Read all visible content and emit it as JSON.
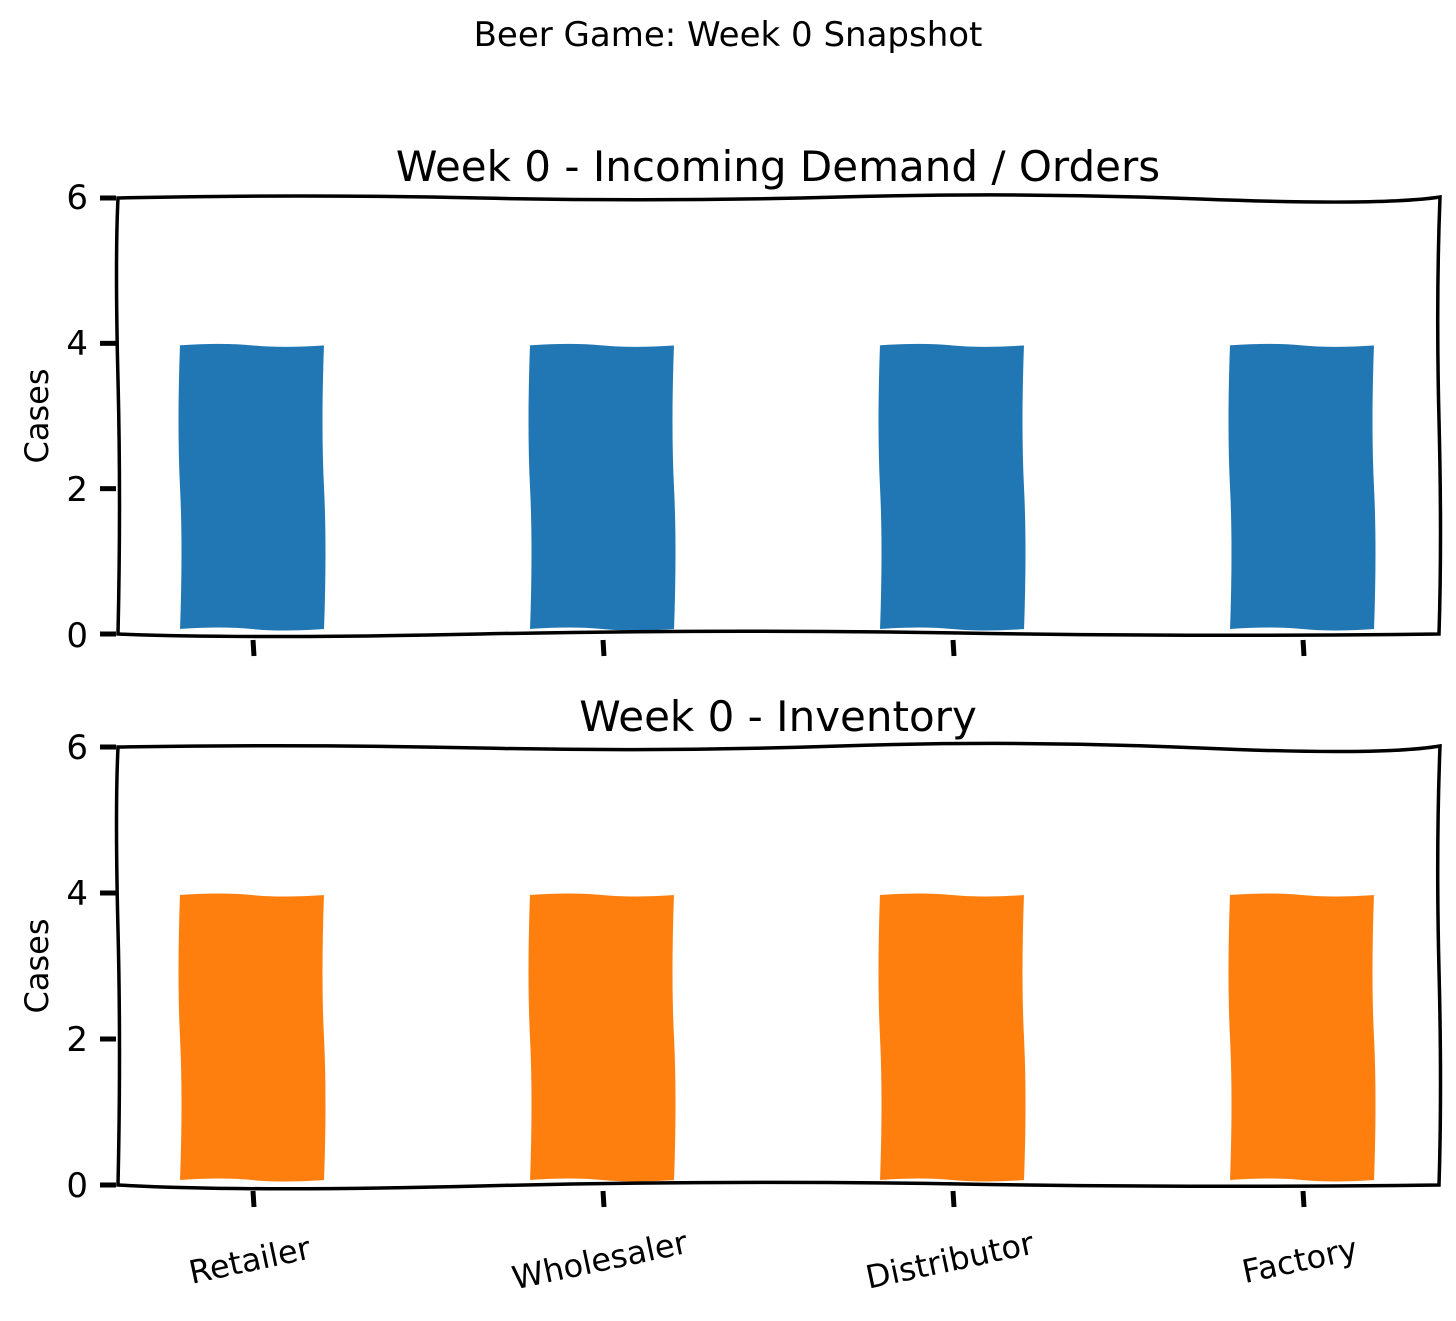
{
  "figure_title": "Beer Game: Week 0 Snapshot",
  "chart_data": [
    {
      "type": "bar",
      "title": "Week 0 - Incoming Demand / Orders",
      "categories": [
        "Retailer",
        "Wholesaler",
        "Distributor",
        "Factory"
      ],
      "values": [
        4,
        4,
        4,
        4
      ],
      "xlabel": "",
      "ylabel": "Cases",
      "ylim": [
        0,
        6
      ],
      "yticks": [
        "0",
        "2",
        "4",
        "6"
      ],
      "show_xtick_labels": false,
      "color": "#2077b4",
      "grid": false
    },
    {
      "type": "bar",
      "title": "Week 0 - Inventory",
      "categories": [
        "Retailer",
        "Wholesaler",
        "Distributor",
        "Factory"
      ],
      "values": [
        4,
        4,
        4,
        4
      ],
      "xlabel": "",
      "ylabel": "Cases",
      "ylim": [
        0,
        6
      ],
      "yticks": [
        "0",
        "2",
        "4",
        "6"
      ],
      "show_xtick_labels": true,
      "color": "#ff7f0e",
      "grid": false
    }
  ]
}
